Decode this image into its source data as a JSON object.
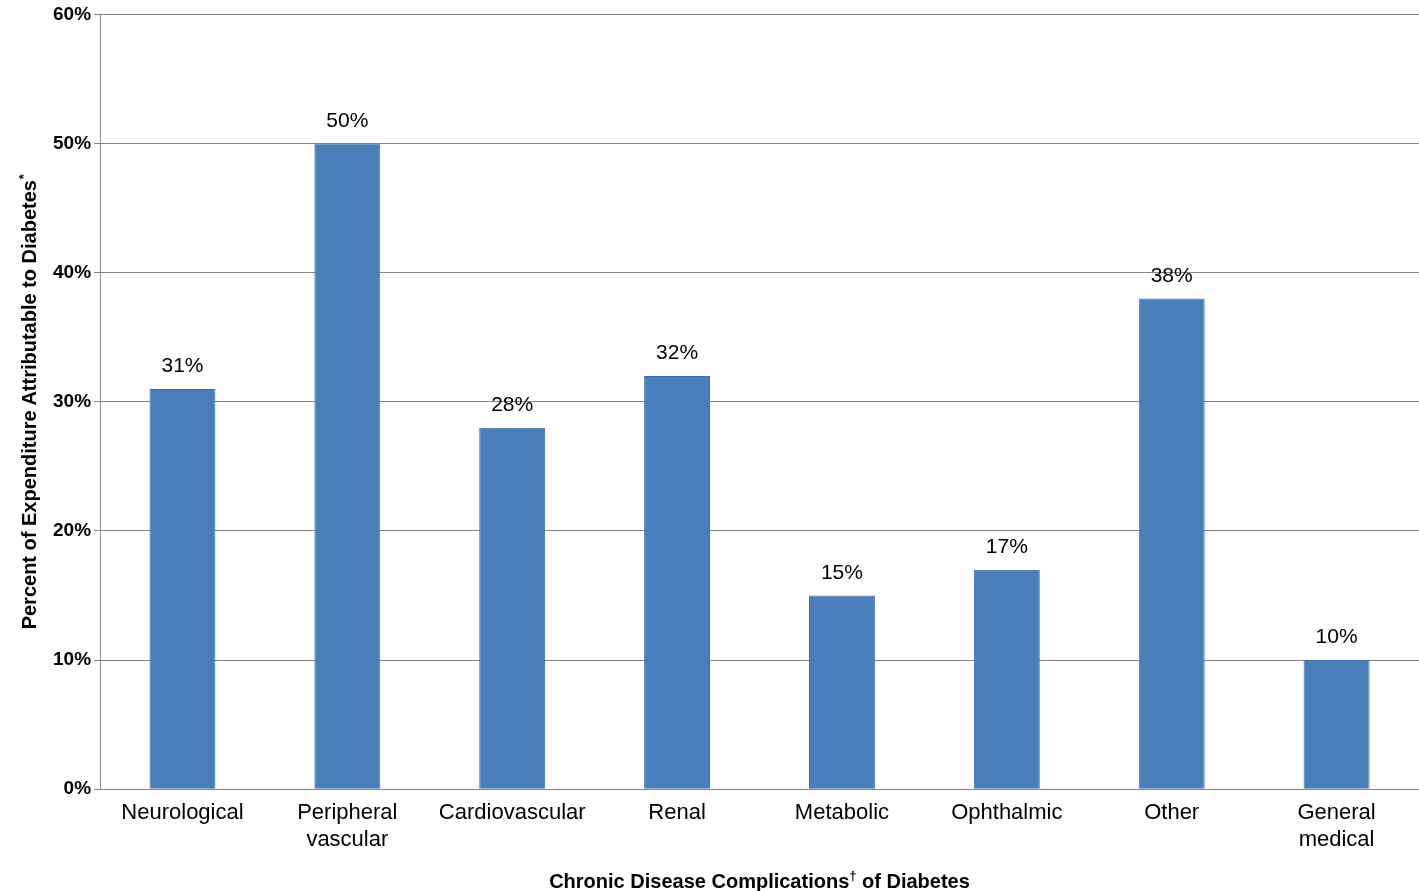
{
  "chart_data": {
    "type": "bar",
    "xlabel": "Chronic Disease Complications$^{†}$ of Diabetes",
    "ylabel": "Percent of Expenditure Attributable to Diabetes$^{*}$",
    "categories": [
      "Neurological",
      "Peripheral vascular",
      "Cardiovascular",
      "Renal",
      "Metabolic",
      "Ophthalmic",
      "Other",
      "General medical"
    ],
    "values": [
      31,
      50,
      28,
      32,
      15,
      17,
      38,
      10
    ],
    "color": "#4a7ebb",
    "value_labels": [
      "31%",
      "50%",
      "28%",
      "32%",
      "15%",
      "17%",
      "38%",
      "10%"
    ],
    "ylim": [
      0,
      60
    ],
    "yticks": [
      {
        "value": 0,
        "label": "0%"
      },
      {
        "value": 10,
        "label": "10%"
      },
      {
        "value": 20,
        "label": "20%"
      },
      {
        "value": 30,
        "label": "30%"
      },
      {
        "value": 40,
        "label": "40%"
      },
      {
        "value": 50,
        "label": "50%"
      },
      {
        "value": 60,
        "label": "60%"
      }
    ],
    "grid": "y",
    "legend": false
  }
}
